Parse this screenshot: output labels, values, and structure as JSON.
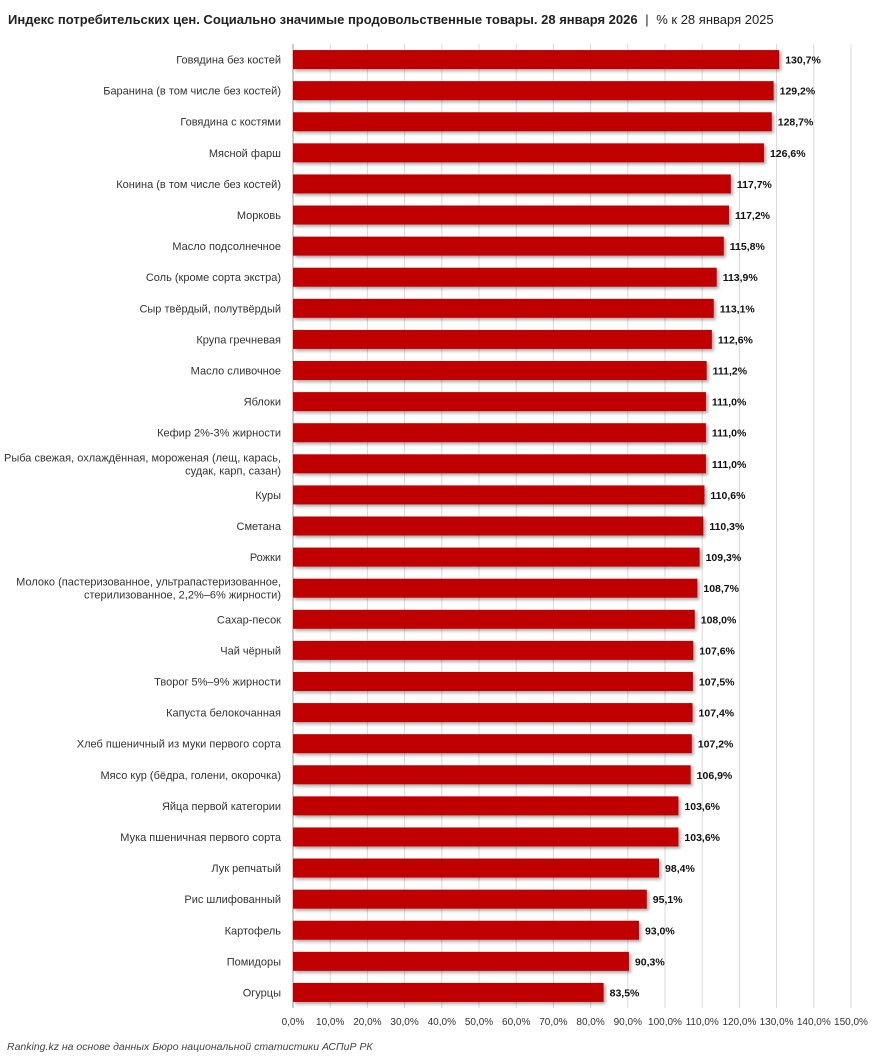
{
  "title": "Индекс потребительских цен. Социально значимые продовольственные товары. 28 января 2026",
  "title_separator": "|",
  "subtitle": "% к 28 января 2025",
  "source": "Ranking.kz на основе данных Бюро национальной статистики АСПиР РК",
  "colors": {
    "bar": "#c00000",
    "grid": "#d9d9d9",
    "axis": "#9a9a9a"
  },
  "chart_data": {
    "type": "bar",
    "orientation": "horizontal",
    "title": "Индекс потребительских цен. Социально значимые продовольственные товары. 28 января 2026",
    "xlabel": "",
    "ylabel": "",
    "xlim": [
      0,
      150
    ],
    "xticks": [
      0,
      10,
      20,
      30,
      40,
      50,
      60,
      70,
      80,
      90,
      100,
      110,
      120,
      130,
      140,
      150
    ],
    "xtick_labels": [
      "0,0%",
      "10,0%",
      "20,0%",
      "30,0%",
      "40,0%",
      "50,0%",
      "60,0%",
      "70,0%",
      "80,0%",
      "90,0%",
      "100,0%",
      "110,0%",
      "120,0%",
      "130,0%",
      "140,0%",
      "150,0%"
    ],
    "grid": true,
    "categories": [
      [
        "Говядина без костей"
      ],
      [
        "Баранина (в том числе без костей)"
      ],
      [
        "Говядина с костями"
      ],
      [
        "Мясной фарш"
      ],
      [
        "Конина (в том числе без костей)"
      ],
      [
        "Морковь"
      ],
      [
        "Масло подсолнечное"
      ],
      [
        "Соль (кроме сорта экстра)"
      ],
      [
        "Сыр твёрдый, полутвёрдый"
      ],
      [
        "Крупа гречневая"
      ],
      [
        "Масло сливочное"
      ],
      [
        "Яблоки"
      ],
      [
        "Кефир 2%-3% жирности"
      ],
      [
        "Рыба свежая, охлаждённая, мороженая (лещ, карась,",
        "судак, карп, сазан)"
      ],
      [
        "Куры"
      ],
      [
        "Сметана"
      ],
      [
        "Рожки"
      ],
      [
        "Молоко (пастеризованное, ультрапастеризованное,",
        "стерилизованное, 2,2%–6% жирности)"
      ],
      [
        "Сахар-песок"
      ],
      [
        "Чай чёрный"
      ],
      [
        "Творог 5%–9% жирности"
      ],
      [
        "Капуста белокочанная"
      ],
      [
        "Хлеб пшеничный из муки первого сорта"
      ],
      [
        "Мясо кур (бёдра, голени, окорочка)"
      ],
      [
        "Яйца первой категории"
      ],
      [
        "Мука пшеничная первого сорта"
      ],
      [
        "Лук репчатый"
      ],
      [
        "Рис шлифованный"
      ],
      [
        "Картофель"
      ],
      [
        "Помидоры"
      ],
      [
        "Огурцы"
      ]
    ],
    "values": [
      130.7,
      129.2,
      128.7,
      126.6,
      117.7,
      117.2,
      115.8,
      113.9,
      113.1,
      112.6,
      111.2,
      111.0,
      111.0,
      111.0,
      110.6,
      110.3,
      109.3,
      108.7,
      108.0,
      107.6,
      107.5,
      107.4,
      107.2,
      106.9,
      103.6,
      103.6,
      98.4,
      95.1,
      93.0,
      90.3,
      83.5
    ],
    "value_labels": [
      "130,7%",
      "129,2%",
      "128,7%",
      "126,6%",
      "117,7%",
      "117,2%",
      "115,8%",
      "113,9%",
      "113,1%",
      "112,6%",
      "111,2%",
      "111,0%",
      "111,0%",
      "111,0%",
      "110,6%",
      "110,3%",
      "109,3%",
      "108,7%",
      "108,0%",
      "107,6%",
      "107,5%",
      "107,4%",
      "107,2%",
      "106,9%",
      "103,6%",
      "103,6%",
      "98,4%",
      "95,1%",
      "93,0%",
      "90,3%",
      "83,5%"
    ]
  }
}
